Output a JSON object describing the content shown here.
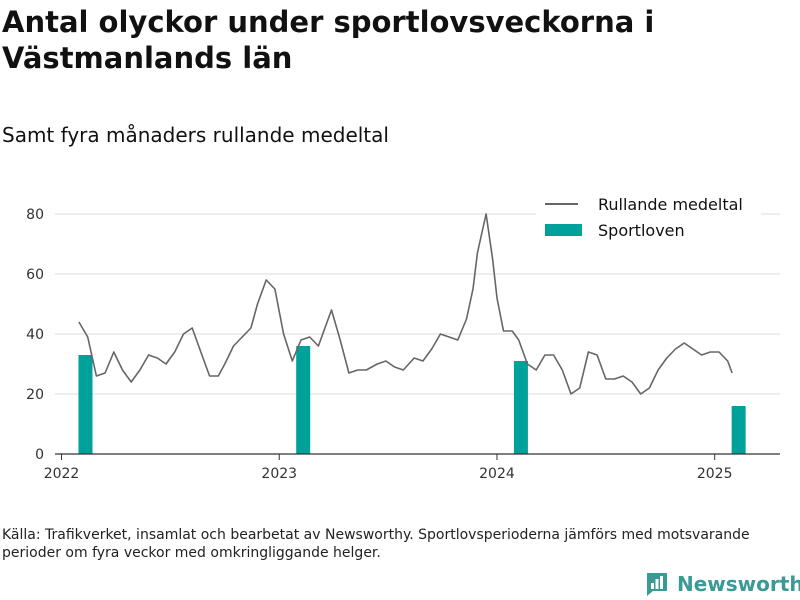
{
  "header": {
    "title": "Antal olyckor under sportlovsveckorna i Västmanlands län",
    "subtitle": "Samt fyra månaders rullande medeltal"
  },
  "footer": {
    "source": "Källa: Trafikverket, insamlat och bearbetat av Newsworthy. Sportlovsperioderna jämförs med motsvarande perioder om fyra veckor med omkringliggande helger.",
    "brand": "Newsworthy"
  },
  "colors": {
    "line": "#666666",
    "bar": "#00a19a",
    "grid": "#dddddd",
    "axis": "#333333",
    "brand": "#3a9a94"
  },
  "icons": {
    "brand_logo": "bar-chart-logo-icon"
  },
  "chart_data": {
    "type": "bar+line",
    "title": "Antal olyckor under sportlovsveckorna i Västmanlands län",
    "subtitle": "Samt fyra månaders rullande medeltal",
    "xlabel": "",
    "ylabel": "",
    "x_ticks": [
      "2022",
      "2023",
      "2024",
      "2025"
    ],
    "x_tick_values": [
      2022.0,
      2023.0,
      2024.0,
      2025.0
    ],
    "xlim": [
      2021.97,
      2025.3
    ],
    "y_ticks": [
      0,
      20,
      40,
      60,
      80
    ],
    "ylim": [
      0,
      84
    ],
    "grid": true,
    "legend": {
      "position": "top-right",
      "entries": [
        "Rullande medeltal",
        "Sportloven"
      ]
    },
    "series": [
      {
        "name": "Rullande medeltal",
        "type": "line",
        "points": [
          [
            2022.08,
            44
          ],
          [
            2022.12,
            39
          ],
          [
            2022.16,
            26
          ],
          [
            2022.2,
            27
          ],
          [
            2022.24,
            34
          ],
          [
            2022.28,
            28
          ],
          [
            2022.32,
            24
          ],
          [
            2022.36,
            28
          ],
          [
            2022.4,
            33
          ],
          [
            2022.44,
            32
          ],
          [
            2022.48,
            30
          ],
          [
            2022.52,
            34
          ],
          [
            2022.56,
            40
          ],
          [
            2022.6,
            42
          ],
          [
            2022.65,
            32
          ],
          [
            2022.68,
            26
          ],
          [
            2022.72,
            26
          ],
          [
            2022.75,
            30
          ],
          [
            2022.79,
            36
          ],
          [
            2022.83,
            39
          ],
          [
            2022.87,
            42
          ],
          [
            2022.9,
            50
          ],
          [
            2022.94,
            58
          ],
          [
            2022.98,
            55
          ],
          [
            2023.02,
            40
          ],
          [
            2023.06,
            31
          ],
          [
            2023.1,
            38
          ],
          [
            2023.14,
            39
          ],
          [
            2023.18,
            36
          ],
          [
            2023.22,
            44
          ],
          [
            2023.24,
            48
          ],
          [
            2023.28,
            38
          ],
          [
            2023.32,
            27
          ],
          [
            2023.36,
            28
          ],
          [
            2023.4,
            28
          ],
          [
            2023.45,
            30
          ],
          [
            2023.49,
            31
          ],
          [
            2023.53,
            29
          ],
          [
            2023.57,
            28
          ],
          [
            2023.62,
            32
          ],
          [
            2023.66,
            31
          ],
          [
            2023.7,
            35
          ],
          [
            2023.74,
            40
          ],
          [
            2023.78,
            39
          ],
          [
            2023.82,
            38
          ],
          [
            2023.86,
            45
          ],
          [
            2023.89,
            55
          ],
          [
            2023.91,
            67
          ],
          [
            2023.95,
            80
          ],
          [
            2023.98,
            65
          ],
          [
            2024.0,
            52
          ],
          [
            2024.03,
            41
          ],
          [
            2024.07,
            41
          ],
          [
            2024.1,
            38
          ],
          [
            2024.14,
            30
          ],
          [
            2024.18,
            28
          ],
          [
            2024.22,
            33
          ],
          [
            2024.26,
            33
          ],
          [
            2024.3,
            28
          ],
          [
            2024.34,
            20
          ],
          [
            2024.38,
            22
          ],
          [
            2024.42,
            34
          ],
          [
            2024.46,
            33
          ],
          [
            2024.5,
            25
          ],
          [
            2024.54,
            25
          ],
          [
            2024.58,
            26
          ],
          [
            2024.62,
            24
          ],
          [
            2024.66,
            20
          ],
          [
            2024.7,
            22
          ],
          [
            2024.74,
            28
          ],
          [
            2024.78,
            32
          ],
          [
            2024.82,
            35
          ],
          [
            2024.86,
            37
          ],
          [
            2024.9,
            35
          ],
          [
            2024.94,
            33
          ],
          [
            2024.98,
            34
          ],
          [
            2025.02,
            34
          ],
          [
            2025.06,
            31
          ],
          [
            2025.08,
            27
          ]
        ]
      },
      {
        "name": "Sportloven",
        "type": "bar",
        "points": [
          [
            2022.11,
            33
          ],
          [
            2023.11,
            36
          ],
          [
            2024.11,
            31
          ],
          [
            2025.11,
            16
          ]
        ]
      }
    ]
  }
}
